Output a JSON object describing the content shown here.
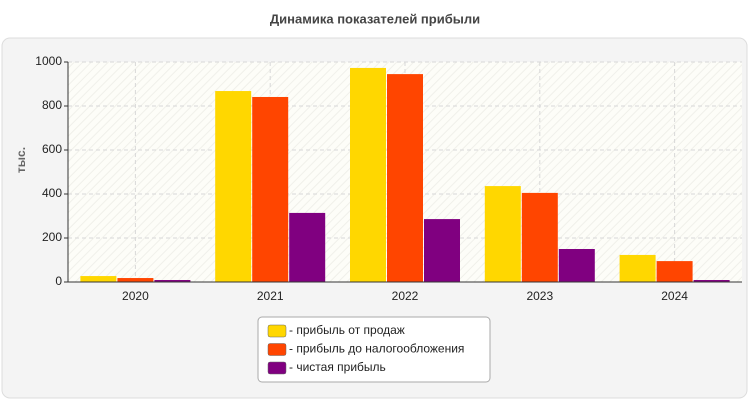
{
  "chart_data": {
    "type": "bar",
    "title": "Динамика показателей прибыли",
    "y_label": "тыс.",
    "categories": [
      "2020",
      "2021",
      "2022",
      "2023",
      "2024"
    ],
    "series": [
      {
        "name": "- прибыль от продаж",
        "color": "#ffd700",
        "values": [
          27,
          868,
          973,
          436,
          123
        ]
      },
      {
        "name": "- прибыль до налогообложения",
        "color": "#ff4500",
        "values": [
          18,
          841,
          945,
          405,
          95
        ]
      },
      {
        "name": "- чистая прибыль",
        "color": "#800080",
        "values": [
          9,
          314,
          286,
          150,
          9
        ]
      }
    ],
    "ylim": [
      0,
      1000
    ],
    "yticks": [
      0,
      200,
      400,
      600,
      800,
      1000
    ],
    "grid": true,
    "legend": "bottom"
  }
}
